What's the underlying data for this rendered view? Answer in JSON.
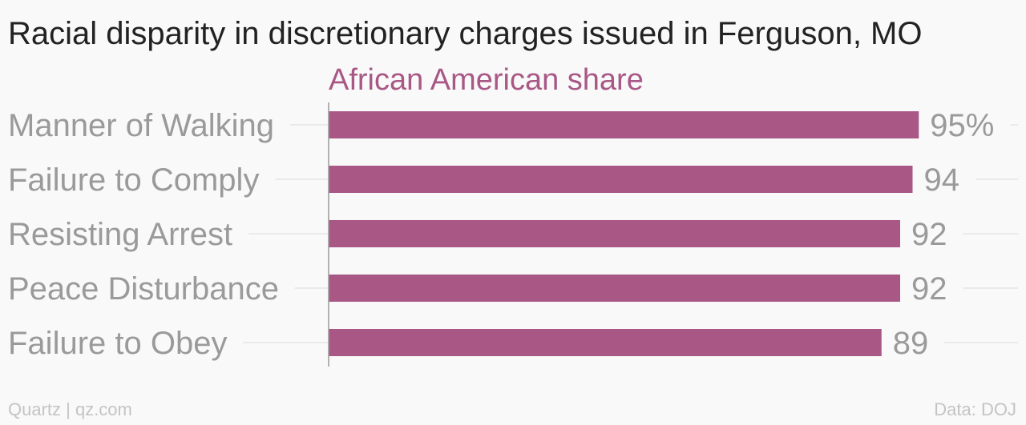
{
  "chart_data": {
    "type": "bar",
    "orientation": "horizontal",
    "title": "Racial disparity in discretionary charges issued in Ferguson, MO",
    "series": [
      {
        "name": "African American share",
        "values": [
          95,
          94,
          92,
          92,
          89
        ],
        "value_labels": [
          "95%",
          "94",
          "92",
          "92",
          "89"
        ]
      }
    ],
    "categories": [
      "Manner of Walking",
      "Failure to Comply",
      "Resisting Arrest",
      "Peace Disturbance",
      "Failure to Obey"
    ],
    "xlim": [
      0,
      100
    ],
    "grid": false,
    "colors": {
      "bar": "#a95886",
      "series_title": "#a95886",
      "title": "#222222",
      "category_label": "#9a9a9a",
      "value_label": "#9a9a9a",
      "footer": "#c4c4c4",
      "guide": "#e6e6e6",
      "axis": "#9b9b9b"
    }
  },
  "footer": {
    "source_left": "Quartz | qz.com",
    "source_right": "Data: DOJ"
  }
}
